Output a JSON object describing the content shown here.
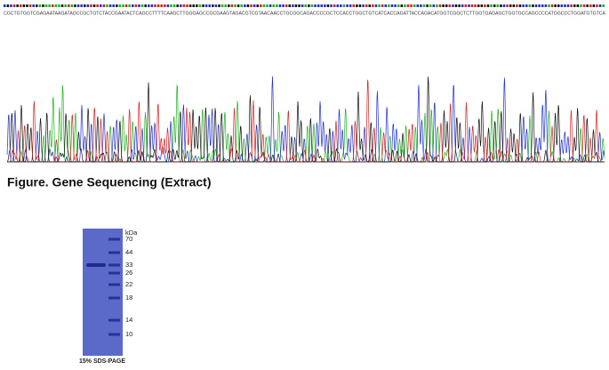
{
  "sequence": "CGCTGTGGTCGAGAATAAGATAGCCGCTGTCTACCGAATACTCAGCCTTTTCAAGCTTGGGAGCCGCGAAGTAGACGTCGTAACAACCTGCGGCAGACCCCGCTCCACCTGGCTGTCATCACCAGATTACCAGACATGGTCGGCTCTTGGTGAGAGCTGGTGCCAGCCCCATGGCCCTGGATGTGTCA",
  "caption": "Figure. Gene Sequencing (Extract)",
  "gel": {
    "unit": "kDa",
    "markers": [
      70,
      44,
      33,
      26,
      22,
      18,
      14,
      10
    ],
    "label": "15% SDS-PAGE"
  }
}
